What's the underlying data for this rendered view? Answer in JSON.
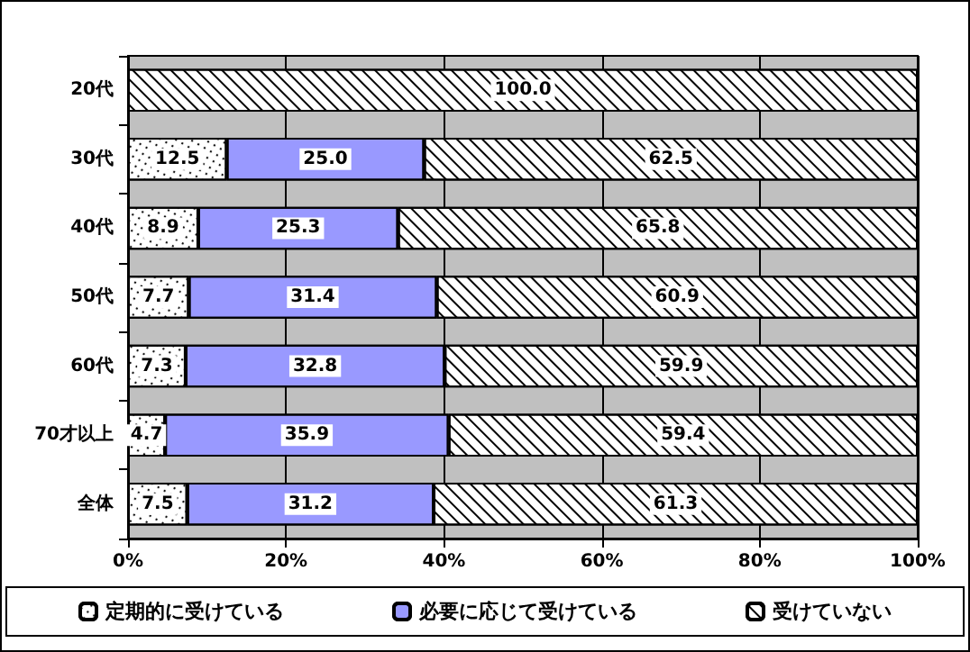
{
  "chart_data": {
    "type": "bar",
    "orientation": "horizontal",
    "stacked": true,
    "grid": "x",
    "legend": "bottom",
    "categories": [
      "20代",
      "30代",
      "40代",
      "50代",
      "60代",
      "70才以上",
      "全体"
    ],
    "xlim": [
      0,
      100
    ],
    "xticks": [
      {
        "value": 0,
        "label": "0%"
      },
      {
        "value": 20,
        "label": "20%"
      },
      {
        "value": 40,
        "label": "40%"
      },
      {
        "value": 60,
        "label": "60%"
      },
      {
        "value": 80,
        "label": "80%"
      },
      {
        "value": 100,
        "label": "100%"
      }
    ],
    "series": [
      {
        "name": "定期的に受けている",
        "color": "#ffffff",
        "values": [
          null,
          12.5,
          8.9,
          7.7,
          7.3,
          4.7,
          7.5
        ],
        "value_labels": [
          null,
          "12.5",
          "8.9",
          "7.7",
          "7.3",
          "4.7",
          "7.5"
        ]
      },
      {
        "name": "必要に応じて受けている",
        "color": "#9999ff",
        "values": [
          null,
          25.0,
          25.3,
          31.4,
          32.8,
          35.9,
          31.2
        ],
        "value_labels": [
          null,
          "25.0",
          "25.3",
          "31.4",
          "32.8",
          "35.9",
          "31.2"
        ]
      },
      {
        "name": "受けていない",
        "color": "#ffffff",
        "values": [
          100.0,
          62.5,
          65.8,
          60.9,
          59.9,
          59.4,
          61.3
        ],
        "value_labels": [
          "100.0",
          "62.5",
          "65.8",
          "60.9",
          "59.9",
          "59.4",
          "61.3"
        ]
      }
    ]
  }
}
